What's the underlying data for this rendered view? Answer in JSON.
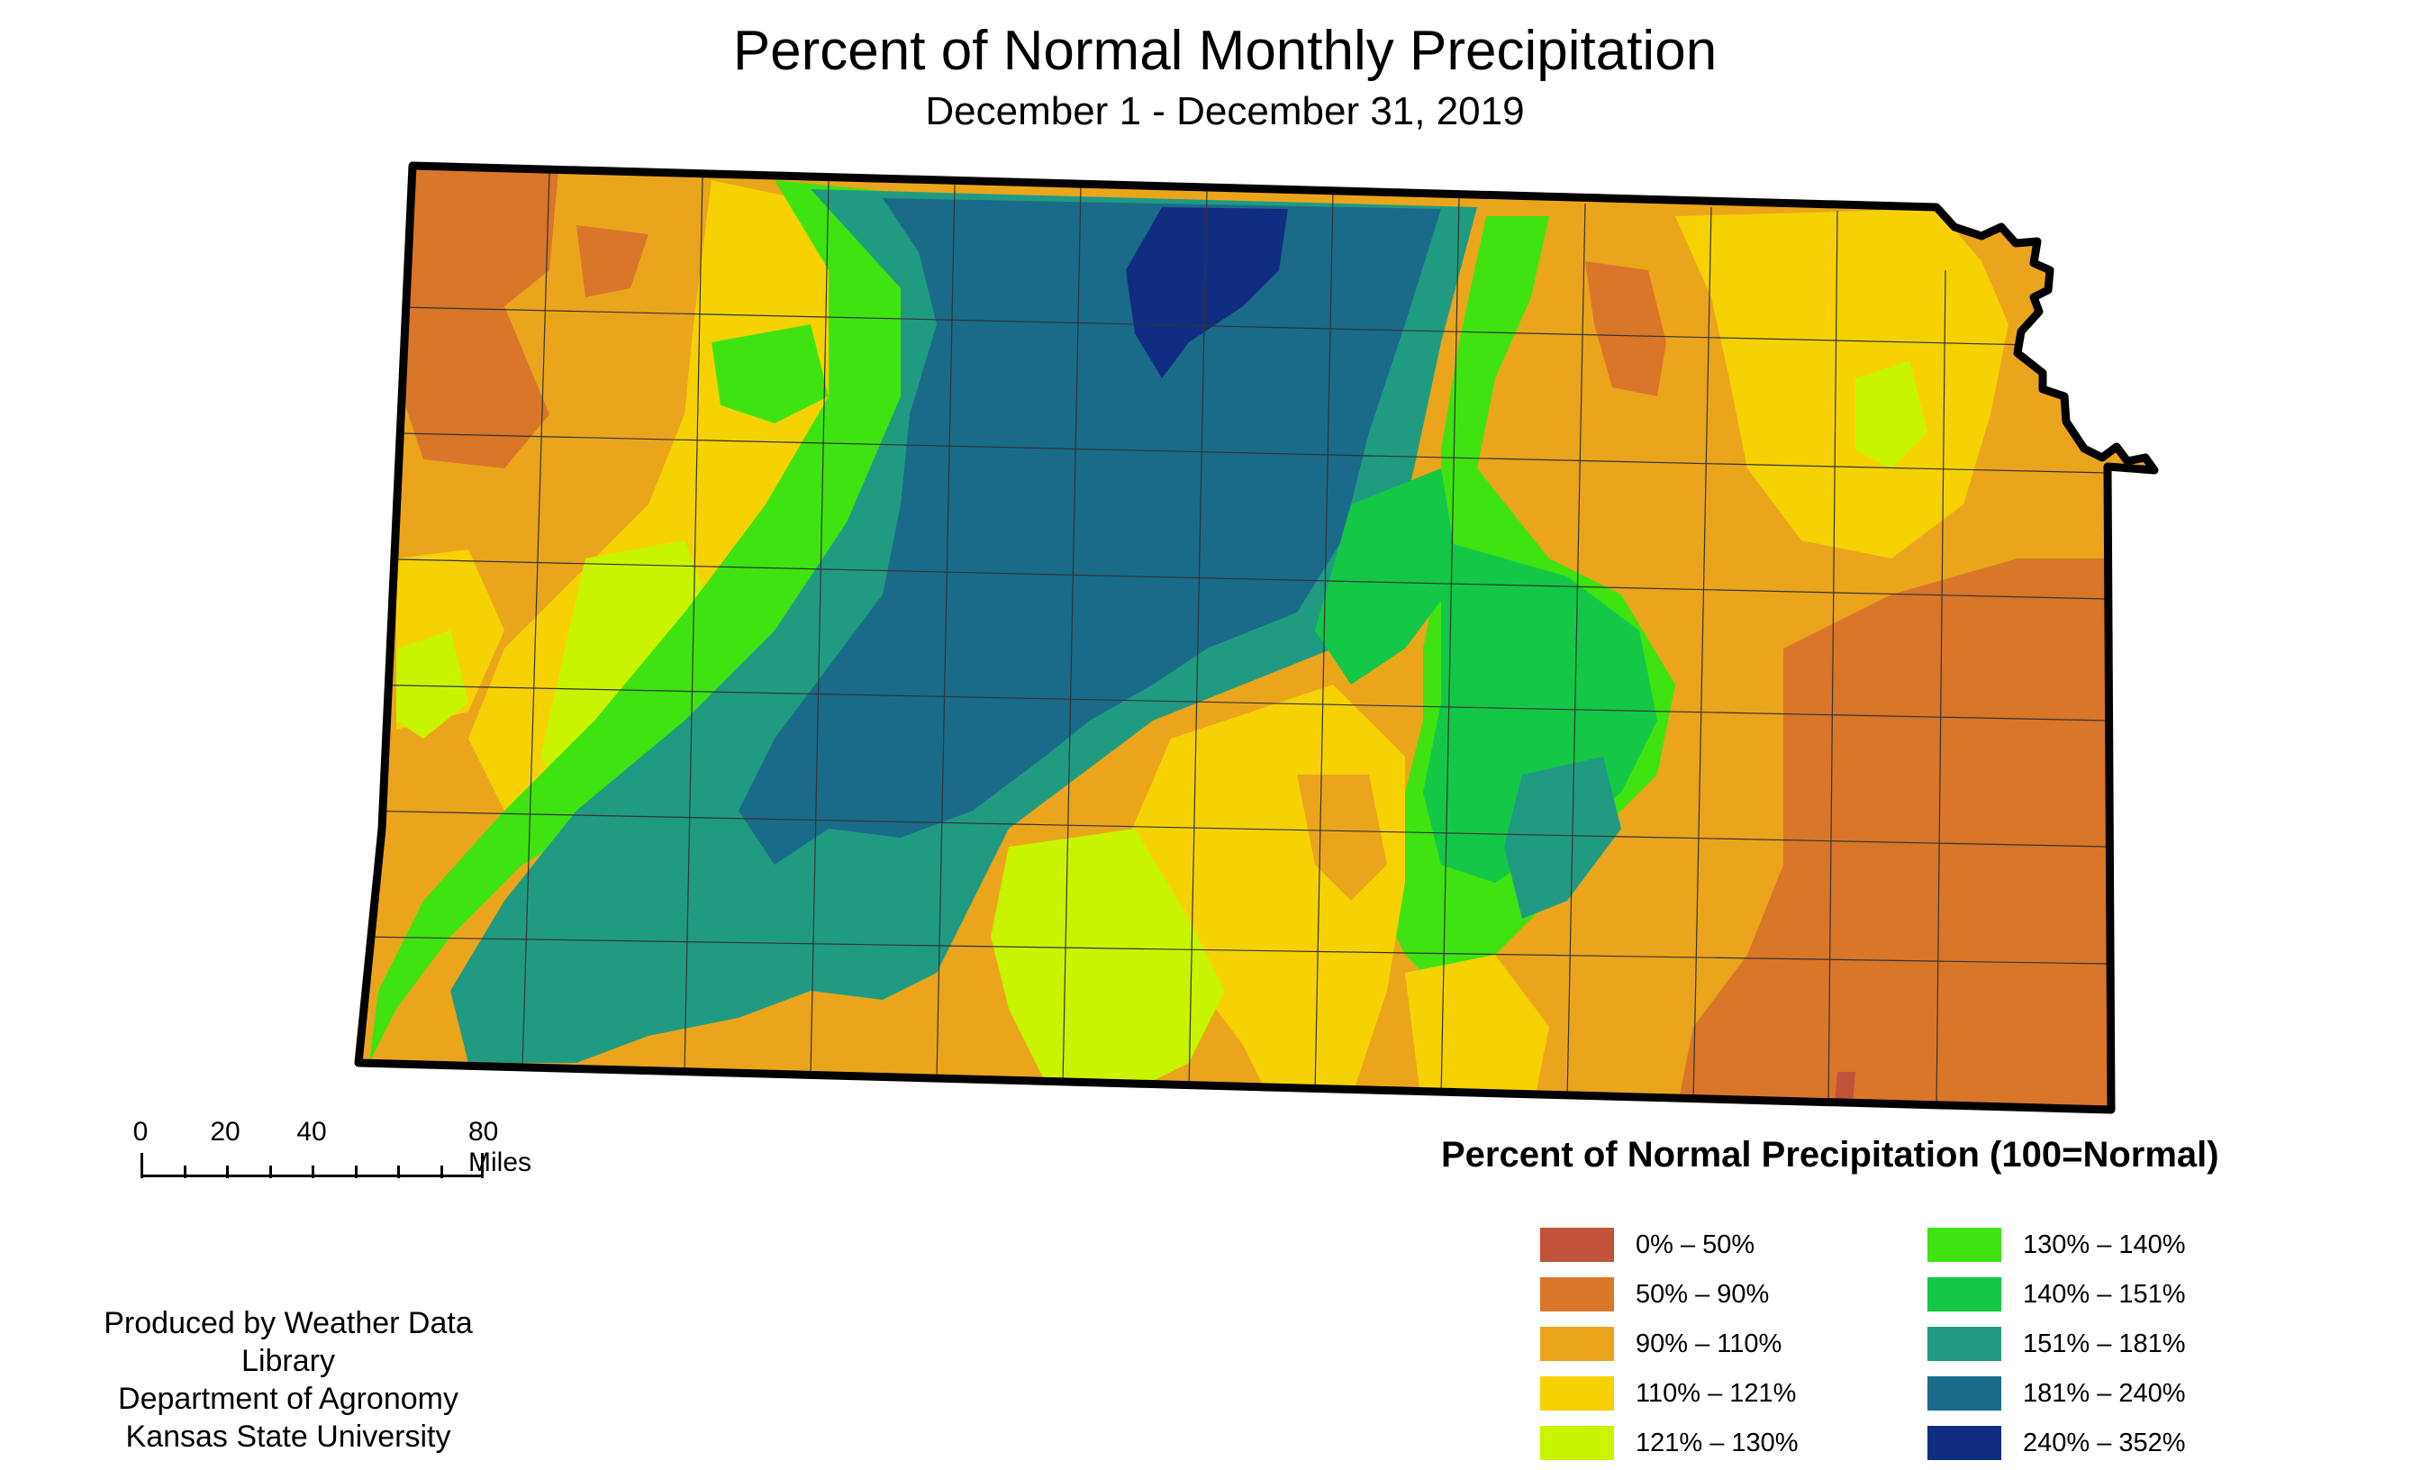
{
  "title": "Percent of Normal Monthly Precipitation",
  "subtitle": "December 1 - December 31, 2019",
  "scale": {
    "labels": [
      "0",
      "20",
      "40",
      "80 Miles"
    ]
  },
  "credit": {
    "line1": "Produced by Weather Data Library",
    "line2": "Department of Agronomy",
    "line3": "Kansas State University"
  },
  "legend": {
    "title": "Percent of Normal Precipitation (100=Normal)",
    "items": [
      {
        "label": "0% – 50%",
        "color": "#c0533a"
      },
      {
        "label": "50% – 90%",
        "color": "#d9762a"
      },
      {
        "label": "90% – 110%",
        "color": "#eba51c"
      },
      {
        "label": "110% – 121%",
        "color": "#f6d205"
      },
      {
        "label": "121% – 130%",
        "color": "#c9f400"
      },
      {
        "label": "130% – 140%",
        "color": "#3fe312"
      },
      {
        "label": "140% – 151%",
        "color": "#14c746"
      },
      {
        "label": "151% – 181%",
        "color": "#209b82"
      },
      {
        "label": "181% – 240%",
        "color": "#1a6b8a"
      },
      {
        "label": "240% – 352%",
        "color": "#102d82"
      }
    ]
  }
}
